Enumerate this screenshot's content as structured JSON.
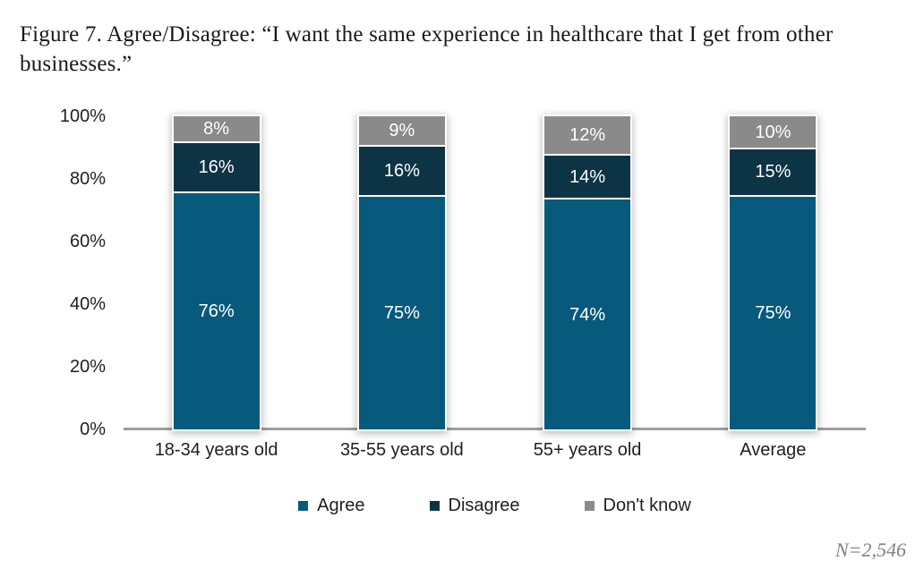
{
  "title": "Figure 7. Agree/Disagree: “I want the same experience in healthcare that I get from other businesses.”",
  "note": "N=2,546",
  "colors": {
    "agree": "#085a7c",
    "disagree": "#0d3445",
    "dont_know": "#8a8a8a",
    "axis_line": "#9e9e9e",
    "background": "#ffffff"
  },
  "chart_data": {
    "type": "bar",
    "stacked": true,
    "title": "Figure 7. Agree/Disagree: “I want the same experience in healthcare that I get from other businesses.”",
    "categories": [
      "18-34 years old",
      "35-55 years old",
      "55+ years old",
      "Average"
    ],
    "series": [
      {
        "name": "Agree",
        "color": "#085a7c",
        "values": [
          76,
          75,
          74,
          75
        ]
      },
      {
        "name": "Disagree",
        "color": "#0d3445",
        "values": [
          16,
          16,
          14,
          15
        ]
      },
      {
        "name": "Don't know",
        "color": "#8a8a8a",
        "values": [
          8,
          9,
          12,
          10
        ]
      }
    ],
    "xlabel": "",
    "ylabel": "",
    "ylim": [
      0,
      100
    ],
    "y_ticks": [
      "100%",
      "80%",
      "60%",
      "40%",
      "20%",
      "0%"
    ],
    "value_suffix": "%",
    "grid": false,
    "legend_position": "bottom",
    "sample_note": "N=2,546"
  }
}
